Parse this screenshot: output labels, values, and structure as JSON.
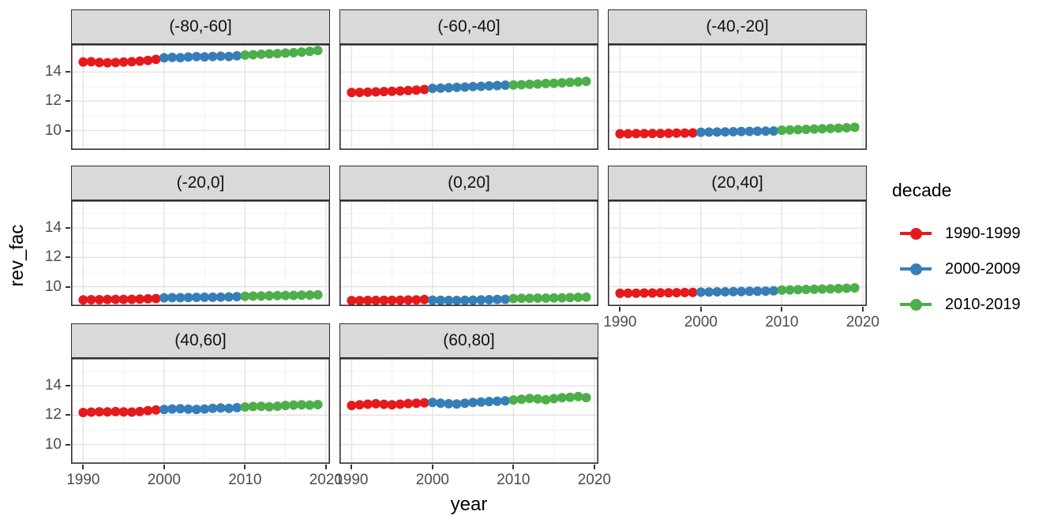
{
  "figure": {
    "x_label": "year",
    "y_label": "rev_fac",
    "legend_title": "decade",
    "x_ticks": [
      1990,
      2000,
      2010,
      2020
    ],
    "x_tick_labels": [
      "1990",
      "2000",
      "2010",
      "2020"
    ],
    "x_minor_ticks": [
      1995,
      2005,
      2015
    ],
    "y_ticks": [
      14,
      12,
      10
    ],
    "y_tick_labels": [
      "14",
      "12",
      "10"
    ],
    "y_minor_ticks": [
      9,
      11,
      13,
      15
    ],
    "x_domain": [
      1988.5,
      2020.5
    ],
    "y_domain": [
      8.68,
      15.9
    ],
    "grid": true,
    "legend_position": "right",
    "colors": {
      "background": "#FFFFFF",
      "strip_bg": "#D9D9D9",
      "panel_border": "#2E2E2E",
      "grid_major": "#E3E3E3",
      "grid_minor": "#F1F1F1",
      "axis_tick": "#333333",
      "tick_label": "#4D4D4D",
      "title_text": "#000000",
      "red": "#E41A1C",
      "blue": "#377EB8",
      "green": "#4DAF4A"
    }
  },
  "chart_data": {
    "type": "scatter",
    "title": "",
    "xlabel": "year",
    "ylabel": "rev_fac",
    "legend_title": "decade",
    "x": [
      1990,
      1991,
      1992,
      1993,
      1994,
      1995,
      1996,
      1997,
      1998,
      1999,
      2000,
      2001,
      2002,
      2003,
      2004,
      2005,
      2006,
      2007,
      2008,
      2009,
      2010,
      2011,
      2012,
      2013,
      2014,
      2015,
      2016,
      2017,
      2018,
      2019
    ],
    "series": [
      {
        "name": "1990-1999",
        "color": "#E41A1C",
        "start_year": 1990,
        "end_year": 1999
      },
      {
        "name": "2000-2009",
        "color": "#377EB8",
        "start_year": 2000,
        "end_year": 2009
      },
      {
        "name": "2010-2019",
        "color": "#4DAF4A",
        "start_year": 2010,
        "end_year": 2019
      }
    ],
    "facets": [
      {
        "label": "(-80,-60]",
        "values": [
          14.68,
          14.7,
          14.65,
          14.63,
          14.65,
          14.68,
          14.7,
          14.74,
          14.79,
          14.86,
          14.97,
          15.0,
          14.98,
          15.02,
          15.05,
          15.03,
          15.06,
          15.08,
          15.06,
          15.1,
          15.15,
          15.18,
          15.21,
          15.24,
          15.26,
          15.29,
          15.32,
          15.36,
          15.41,
          15.47
        ]
      },
      {
        "label": "(-60,-40]",
        "values": [
          12.6,
          12.61,
          12.62,
          12.64,
          12.66,
          12.68,
          12.7,
          12.73,
          12.76,
          12.8,
          12.88,
          12.9,
          12.92,
          12.95,
          12.97,
          13.0,
          13.02,
          13.05,
          13.07,
          13.1,
          13.11,
          13.13,
          13.16,
          13.18,
          13.21,
          13.23,
          13.26,
          13.29,
          13.32,
          13.36
        ]
      },
      {
        "label": "(-40,-20]",
        "values": [
          9.78,
          9.78,
          9.79,
          9.79,
          9.8,
          9.8,
          9.81,
          9.82,
          9.83,
          9.84,
          9.88,
          9.89,
          9.9,
          9.91,
          9.92,
          9.93,
          9.94,
          9.95,
          9.96,
          9.97,
          10.02,
          10.04,
          10.06,
          10.08,
          10.1,
          10.12,
          10.14,
          10.16,
          10.19,
          10.22
        ]
      },
      {
        "label": "(-20,0]",
        "values": [
          9.1,
          9.11,
          9.11,
          9.12,
          9.13,
          9.13,
          9.14,
          9.15,
          9.17,
          9.19,
          9.24,
          9.25,
          9.25,
          9.26,
          9.27,
          9.28,
          9.28,
          9.29,
          9.3,
          9.32,
          9.35,
          9.36,
          9.37,
          9.38,
          9.39,
          9.4,
          9.41,
          9.42,
          9.43,
          9.45
        ]
      },
      {
        "label": "(0,20]",
        "values": [
          9.05,
          9.05,
          9.06,
          9.06,
          9.07,
          9.07,
          9.08,
          9.09,
          9.1,
          9.12,
          9.08,
          9.07,
          9.06,
          9.06,
          9.07,
          9.08,
          9.1,
          9.11,
          9.13,
          9.14,
          9.19,
          9.2,
          9.21,
          9.22,
          9.22,
          9.23,
          9.24,
          9.26,
          9.27,
          9.29
        ]
      },
      {
        "label": "(20,40]",
        "values": [
          9.55,
          9.56,
          9.56,
          9.57,
          9.57,
          9.58,
          9.58,
          9.59,
          9.6,
          9.61,
          9.63,
          9.64,
          9.65,
          9.65,
          9.66,
          9.67,
          9.68,
          9.69,
          9.7,
          9.72,
          9.77,
          9.78,
          9.8,
          9.81,
          9.82,
          9.84,
          9.85,
          9.87,
          9.89,
          9.92
        ]
      },
      {
        "label": "(40,60]",
        "values": [
          12.18,
          12.21,
          12.23,
          12.22,
          12.24,
          12.22,
          12.21,
          12.25,
          12.31,
          12.36,
          12.39,
          12.42,
          12.44,
          12.41,
          12.39,
          12.42,
          12.46,
          12.49,
          12.47,
          12.51,
          12.56,
          12.59,
          12.61,
          12.57,
          12.61,
          12.66,
          12.69,
          12.71,
          12.69,
          12.72
        ]
      },
      {
        "label": "(60,80]",
        "values": [
          12.66,
          12.71,
          12.75,
          12.78,
          12.74,
          12.71,
          12.75,
          12.79,
          12.81,
          12.84,
          12.87,
          12.82,
          12.78,
          12.76,
          12.82,
          12.87,
          12.9,
          12.93,
          12.95,
          12.98,
          13.04,
          13.09,
          13.14,
          13.11,
          13.05,
          13.13,
          13.19,
          13.22,
          13.27,
          13.2
        ]
      }
    ]
  }
}
